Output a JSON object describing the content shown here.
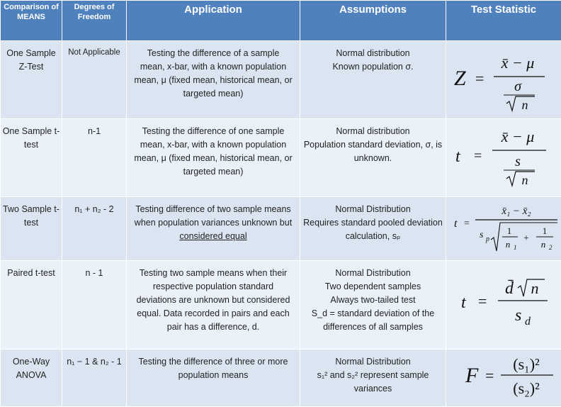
{
  "headers": {
    "comparison": "Comparison of MEANS",
    "dof": "Degrees of Freedom",
    "application": "Application",
    "assumptions": "Assumptions",
    "test_statistic": "Test Statistic"
  },
  "rows": [
    {
      "name": "One Sample Z-Test",
      "dof": "Not Applicable",
      "application": "Testing the difference of a sample mean, x-bar, with a known population mean, μ (fixed mean, historical mean, or targeted mean)",
      "assumptions": "Normal distribution\nKnown population σ.",
      "formula": {
        "lhs": "Z",
        "num": "x̄ − μ",
        "den": "σ",
        "root": "n"
      }
    },
    {
      "name": "One Sample t-test",
      "dof": "n-1",
      "application": "Testing the difference of one sample mean, x-bar, with a known population mean, μ (fixed mean, historical mean, or targeted mean)",
      "assumptions": "Normal distribution\nPopulation standard deviation, σ, is unknown.",
      "formula": {
        "lhs": "t",
        "num": "x̄ − μ",
        "den": "s",
        "root": "n"
      }
    },
    {
      "name": "Two Sample t-test",
      "dof": "n₁ + n₂ - 2",
      "application_pre": "Testing difference of two sample means when population variances unknown but",
      "application_underlined": "considered equal",
      "assumptions": "Normal Distribution\nRequires standard pooled deviation calculation, sₚ",
      "formula": {
        "lhs": "t",
        "num": "x̄₁ − x̄₂",
        "sp": "s",
        "sp_sub": "p",
        "f1_num": "1",
        "f1_den": "n",
        "f1_sub": "1",
        "f2_num": "1",
        "f2_den": "n",
        "f2_sub": "2",
        "plus": "+"
      }
    },
    {
      "name": "Paired t-test",
      "dof": "n - 1",
      "application": "Testing two sample means when their respective population standard deviations are unknown but considered equal. Data recorded in pairs and each pair has a difference, d.",
      "assumptions": "Normal Distribution\nTwo dependent samples\nAlways two-tailed test\nS_d = standard deviation of the differences of all samples",
      "formula": {
        "lhs": "t",
        "num": "d̄",
        "root": "n",
        "den": "s",
        "den_sub": "d"
      }
    },
    {
      "name": "One-Way ANOVA",
      "dof": "n₁ − 1 & n₂ - 1",
      "application": "Testing the difference of three or more population means",
      "assumptions": "Normal Distribution\ns₁² and s₂² represent sample variances",
      "formula": {
        "lhs": "F",
        "num": "(s₁)²",
        "den": "(s₂)²"
      }
    }
  ]
}
